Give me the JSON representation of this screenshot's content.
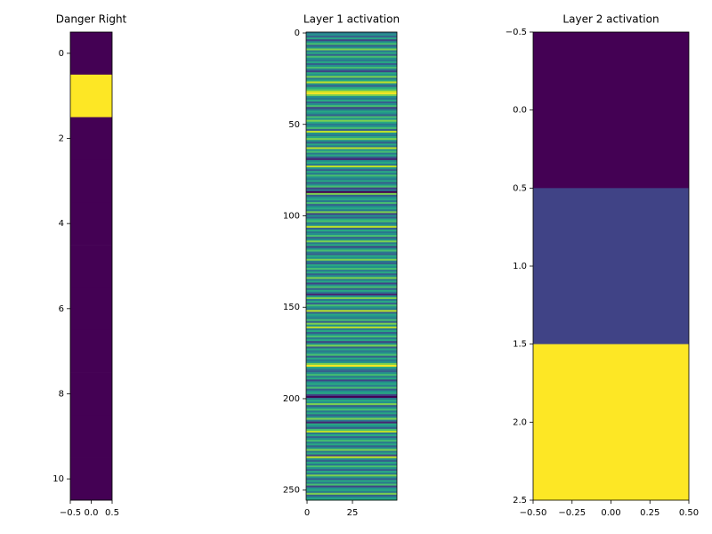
{
  "chart_data": [
    {
      "type": "heatmap",
      "title": "Danger Right",
      "colormap": "viridis",
      "values": [
        0,
        1,
        0,
        0,
        0,
        0,
        0,
        0,
        0,
        0,
        0
      ],
      "xlim": [
        -0.5,
        0.5
      ],
      "ylim": [
        10.5,
        -0.5
      ],
      "xticks": [
        {
          "value": -0.5,
          "label": "−0.5"
        },
        {
          "value": 0,
          "label": "0.0"
        },
        0.5
      ],
      "yticks": [
        0,
        2,
        4,
        6,
        8,
        10
      ]
    },
    {
      "type": "heatmap",
      "title": "Layer 1 activation",
      "colormap": "viridis",
      "values": [
        0.4,
        0.5,
        0.3,
        0.6,
        0.2,
        0.5,
        0.7,
        0.3,
        0.5,
        0.8,
        0.4,
        0.6,
        0.3,
        0.7,
        0.5,
        0.4,
        0.6,
        0.3,
        0.5,
        0.7,
        0.4,
        0.2,
        0.6,
        0.5,
        0.8,
        0.4,
        0.6,
        0.9,
        0.5,
        0.3,
        0.6,
        0.7,
        0.9,
        1.0,
        0.8,
        0.5,
        0.4,
        0.6,
        0.3,
        0.5,
        0.7,
        0.2,
        0.4,
        0.6,
        0.5,
        0.3,
        0.7,
        0.5,
        0.8,
        0.6,
        0.4,
        0.5,
        0.7,
        0.3,
        0.9,
        0.5,
        0.4,
        0.6,
        0.8,
        0.5,
        0.3,
        0.6,
        0.4,
        0.9,
        0.5,
        0.7,
        0.4,
        0.6,
        0.3,
        0.1,
        0.5,
        0.6,
        0.4,
        0.9,
        0.5,
        0.3,
        0.6,
        0.4,
        0.7,
        0.5,
        0.4,
        0.6,
        0.3,
        0.5,
        0.7,
        0.2,
        0.4,
        0.0,
        0.8,
        0.3,
        0.5,
        0.6,
        0.4,
        0.7,
        0.3,
        0.5,
        0.6,
        0.4,
        0.8,
        0.2,
        0.5,
        0.3,
        0.6,
        0.7,
        0.4,
        0.5,
        0.9,
        0.3,
        0.6,
        0.4,
        0.5,
        0.7,
        0.3,
        0.5,
        0.8,
        0.4,
        0.6,
        0.2,
        0.5,
        0.7,
        0.4,
        0.3,
        0.6,
        0.5,
        0.8,
        0.4,
        0.3,
        0.6,
        0.5,
        0.7,
        0.4,
        0.6,
        0.3,
        0.5,
        0.8,
        0.4,
        0.6,
        0.2,
        0.5,
        0.7,
        0.3,
        0.6,
        0.4,
        0.1,
        0.5,
        0.8,
        0.4,
        0.6,
        0.3,
        0.7,
        0.5,
        0.4,
        0.9,
        0.3,
        0.6,
        0.5,
        0.4,
        0.7,
        0.3,
        0.8,
        0.5,
        0.9,
        0.4,
        0.6,
        0.3,
        0.5,
        0.7,
        0.4,
        0.6,
        0.2,
        0.5,
        0.8,
        0.3,
        0.6,
        0.4,
        0.5,
        0.7,
        0.3,
        0.6,
        0.4,
        0.5,
        0.8,
        1.0,
        0.6,
        0.4,
        0.3,
        0.5,
        0.7,
        0.4,
        0.6,
        0.2,
        0.5,
        0.6,
        0.4,
        0.7,
        0.3,
        0.5,
        0.6,
        0.2,
        0.0,
        0.4,
        0.6,
        0.5,
        0.8,
        0.3,
        0.5,
        0.7,
        0.4,
        0.6,
        0.3,
        0.5,
        0.8,
        0.4,
        0.1,
        0.6,
        0.5,
        0.3,
        0.7,
        0.9,
        0.4,
        0.6,
        0.3,
        0.5,
        0.7,
        0.4,
        0.6,
        0.3,
        0.5,
        0.8,
        0.4,
        0.6,
        0.2,
        0.9,
        0.5,
        0.3,
        0.6,
        0.4,
        0.7,
        0.5,
        0.3,
        0.6,
        0.4,
        0.8,
        0.5,
        0.3,
        0.6,
        0.4,
        0.7,
        0.2,
        0.5,
        0.6,
        0.4,
        0.8,
        0.3,
        0.5,
        0.6
      ],
      "xlim": [
        -0.5,
        49.5
      ],
      "ylim": [
        255.5,
        -0.5
      ],
      "xticks": [
        0,
        25
      ],
      "yticks": [
        0,
        50,
        100,
        150,
        200,
        250
      ]
    },
    {
      "type": "heatmap",
      "title": "Layer 2 activation",
      "colormap": "viridis",
      "values": [
        0,
        0.2,
        1
      ],
      "xlim": [
        -0.5,
        0.5
      ],
      "ylim": [
        2.5,
        -0.5
      ],
      "xticks": [
        {
          "value": -0.5,
          "label": "−0.50"
        },
        {
          "value": -0.25,
          "label": "−0.25"
        },
        {
          "value": 0,
          "label": "0.00"
        },
        0.25,
        {
          "value": 0.5,
          "label": "0.50"
        }
      ],
      "yticks": [
        {
          "value": -0.5,
          "label": "−0.5"
        },
        {
          "value": 0,
          "label": "0.0"
        },
        0.5,
        {
          "value": 1,
          "label": "1.0"
        },
        1.5,
        {
          "value": 2,
          "label": "2.0"
        },
        2.5
      ]
    }
  ]
}
